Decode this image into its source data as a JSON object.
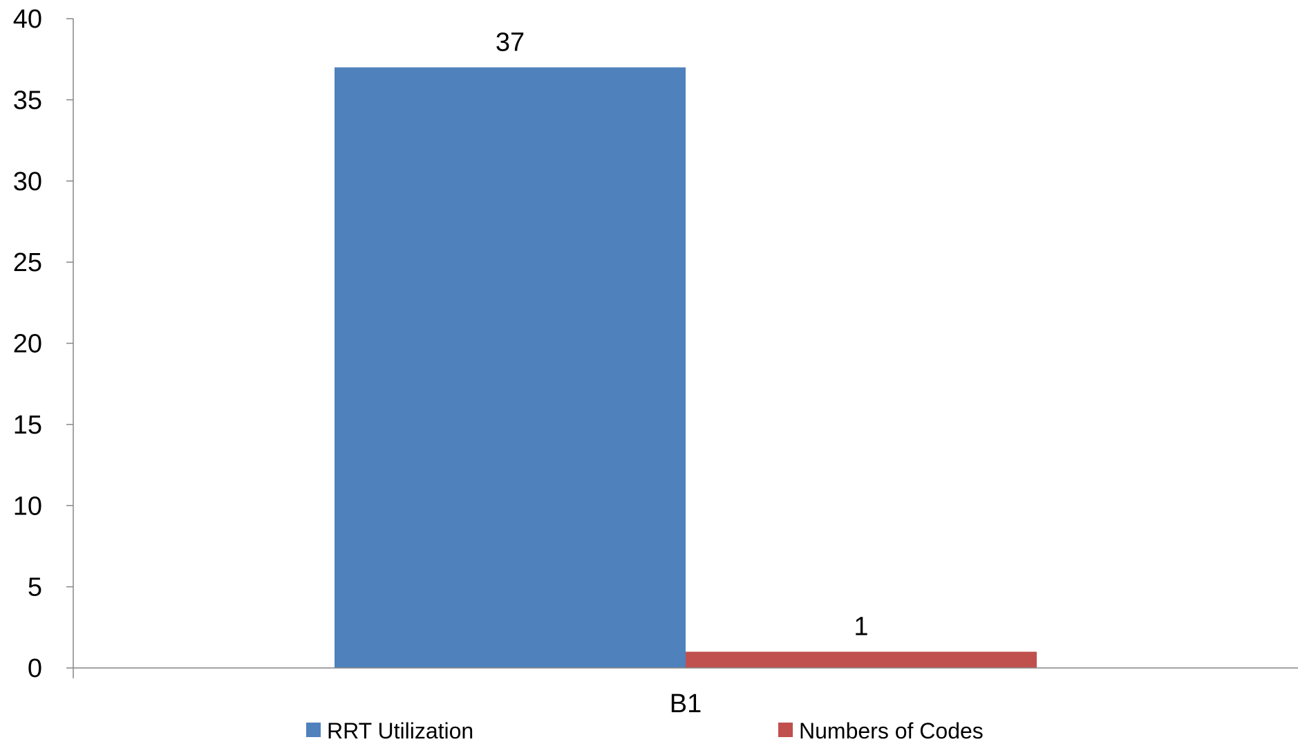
{
  "chart_data": {
    "type": "bar",
    "categories": [
      "B1"
    ],
    "series": [
      {
        "name": "RRT Utilization",
        "values": [
          37
        ],
        "color": "#4F81BD"
      },
      {
        "name": "Numbers of Codes",
        "values": [
          1
        ],
        "color": "#C0504D"
      }
    ],
    "title": "",
    "xlabel": "",
    "ylabel": "",
    "ylim": [
      0,
      40
    ],
    "yticks": [
      0,
      5,
      10,
      15,
      20,
      25,
      30,
      35,
      40
    ],
    "data_labels": true,
    "grid": false,
    "legend_position": "bottom"
  }
}
